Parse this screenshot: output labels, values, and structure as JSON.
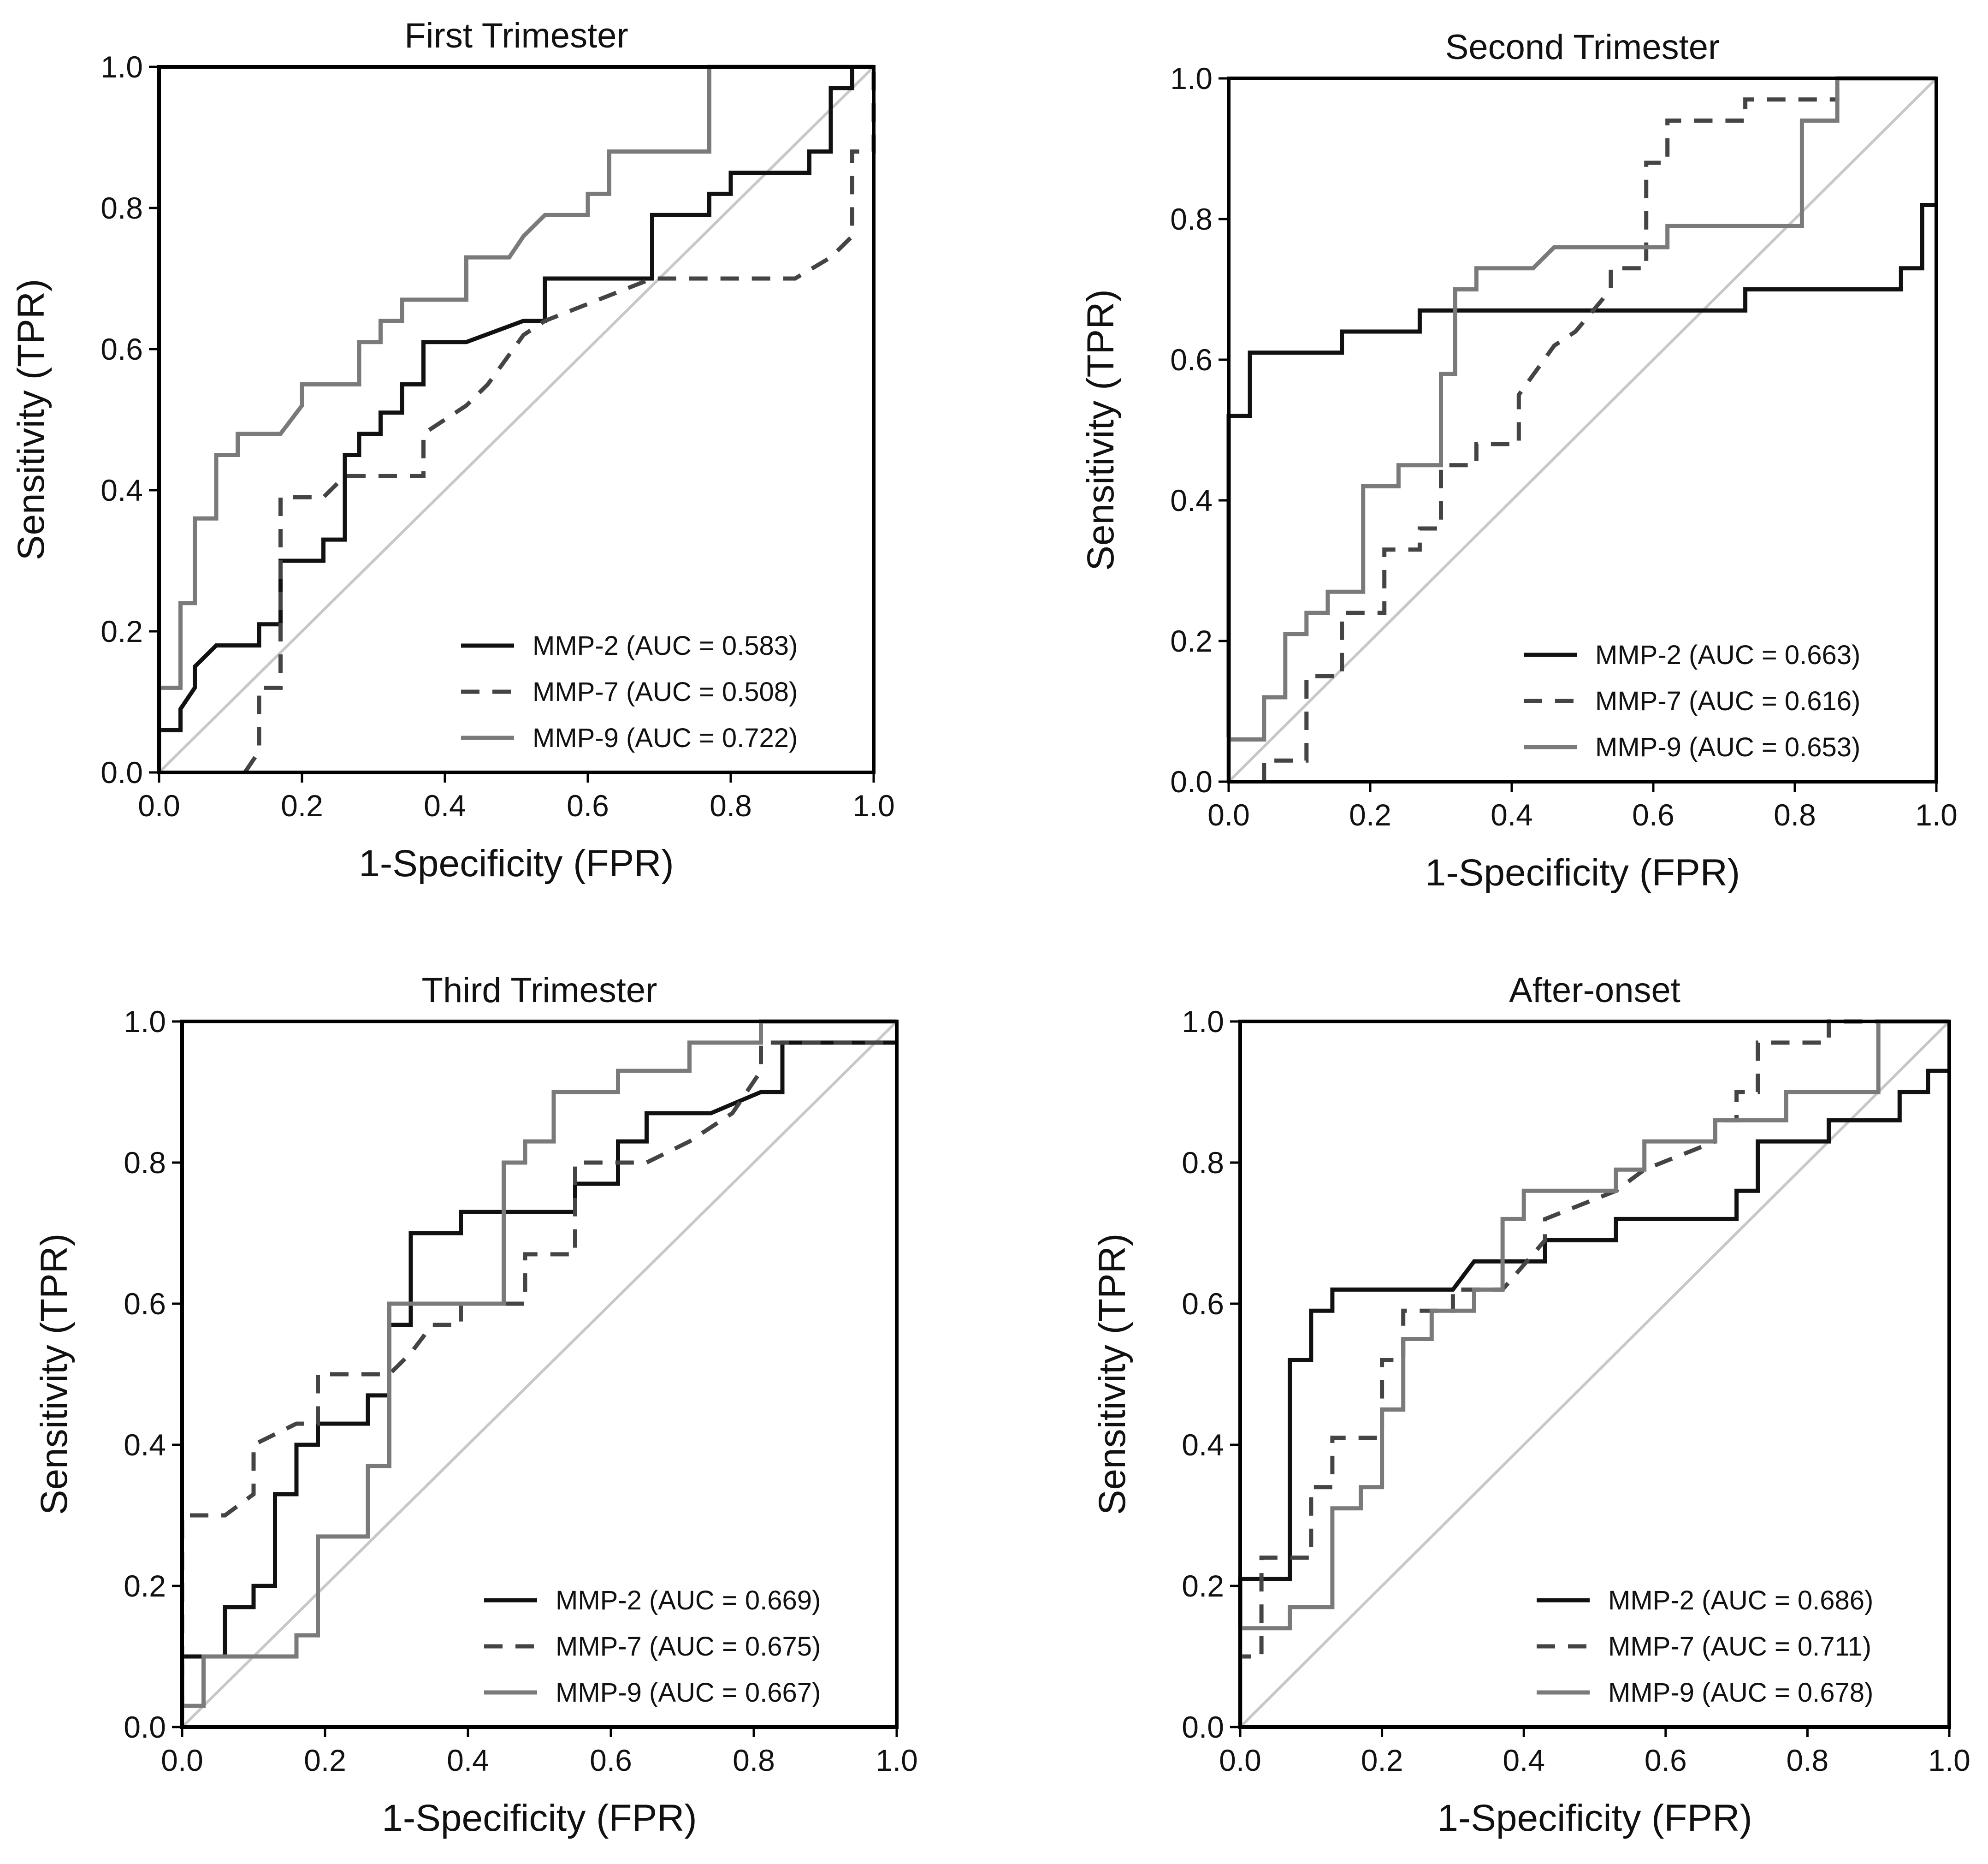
{
  "chart_data": [
    {
      "type": "line",
      "title": "First Trimester",
      "xlabel": "1-Specificity (FPR)",
      "ylabel": "Sensitivity (TPR)",
      "xlim": [
        0,
        1
      ],
      "ylim": [
        0,
        1
      ],
      "xticks": [
        "0.0",
        "0.2",
        "0.4",
        "0.6",
        "0.8",
        "1.0"
      ],
      "yticks": [
        "0.0",
        "0.2",
        "0.4",
        "0.6",
        "0.8",
        "1.0"
      ],
      "reference_line": "y = x",
      "legend_position": "lower-right",
      "series": [
        {
          "name": "MMP-2 (AUC = 0.583)",
          "style": "solid-black",
          "x": [
            0,
            0,
            0.03,
            0.03,
            0.05,
            0.05,
            0.08,
            0.08,
            0.14,
            0.14,
            0.17,
            0.17,
            0.23,
            0.23,
            0.26,
            0.26,
            0.28,
            0.28,
            0.31,
            0.31,
            0.34,
            0.34,
            0.37,
            0.37,
            0.43,
            0.51,
            0.54,
            0.54,
            0.69,
            0.69,
            0.77,
            0.77,
            0.8,
            0.8,
            0.91,
            0.91,
            0.94,
            0.94,
            0.97,
            0.97,
            1.0
          ],
          "y": [
            0,
            0.06,
            0.06,
            0.09,
            0.12,
            0.15,
            0.18,
            0.18,
            0.18,
            0.21,
            0.21,
            0.3,
            0.3,
            0.33,
            0.33,
            0.45,
            0.45,
            0.48,
            0.48,
            0.51,
            0.51,
            0.55,
            0.55,
            0.61,
            0.61,
            0.64,
            0.64,
            0.7,
            0.7,
            0.79,
            0.79,
            0.82,
            0.82,
            0.85,
            0.85,
            0.88,
            0.88,
            0.97,
            0.97,
            1.0,
            1.0
          ]
        },
        {
          "name": "MMP-7 (AUC = 0.508)",
          "style": "dashed-darkgray",
          "x": [
            0.12,
            0.14,
            0.14,
            0.17,
            0.17,
            0.23,
            0.26,
            0.26,
            0.37,
            0.37,
            0.43,
            0.46,
            0.51,
            0.54,
            0.69,
            0.89,
            0.94,
            0.97,
            0.97,
            1.0,
            1.0
          ],
          "y": [
            0,
            0.03,
            0.12,
            0.12,
            0.39,
            0.39,
            0.42,
            0.42,
            0.42,
            0.48,
            0.52,
            0.55,
            0.62,
            0.64,
            0.7,
            0.7,
            0.73,
            0.76,
            0.88,
            0.88,
            1.0
          ]
        },
        {
          "name": "MMP-9 (AUC = 0.722)",
          "style": "solid-gray",
          "x": [
            0,
            0,
            0.03,
            0.03,
            0.05,
            0.05,
            0.08,
            0.08,
            0.11,
            0.11,
            0.17,
            0.2,
            0.2,
            0.28,
            0.28,
            0.31,
            0.31,
            0.34,
            0.34,
            0.43,
            0.43,
            0.49,
            0.51,
            0.54,
            0.6,
            0.6,
            0.63,
            0.63,
            0.77,
            0.77,
            0.97,
            0.97,
            1.0
          ],
          "y": [
            0,
            0.12,
            0.12,
            0.24,
            0.24,
            0.36,
            0.36,
            0.45,
            0.45,
            0.48,
            0.48,
            0.52,
            0.55,
            0.55,
            0.61,
            0.61,
            0.64,
            0.64,
            0.67,
            0.67,
            0.73,
            0.73,
            0.76,
            0.79,
            0.79,
            0.82,
            0.82,
            0.88,
            0.88,
            1.0,
            1.0,
            1.0,
            1.0
          ]
        }
      ]
    },
    {
      "type": "line",
      "title": "Second Trimester",
      "xlabel": "1-Specificity (FPR)",
      "ylabel": "Sensitivity (TPR)",
      "xlim": [
        0,
        1
      ],
      "ylim": [
        0,
        1
      ],
      "xticks": [
        "0.0",
        "0.2",
        "0.4",
        "0.6",
        "0.8",
        "1.0"
      ],
      "yticks": [
        "0.0",
        "0.2",
        "0.4",
        "0.6",
        "0.8",
        "1.0"
      ],
      "reference_line": "y = x",
      "legend_position": "lower-right",
      "series": [
        {
          "name": "MMP-2 (AUC = 0.663)",
          "style": "solid-black",
          "x": [
            0,
            0,
            0.03,
            0.03,
            0.16,
            0.16,
            0.27,
            0.27,
            0.73,
            0.73,
            0.95,
            0.95,
            0.98,
            0.98,
            1.0
          ],
          "y": [
            0,
            0.52,
            0.52,
            0.61,
            0.61,
            0.64,
            0.64,
            0.67,
            0.67,
            0.7,
            0.7,
            0.73,
            0.73,
            0.82,
            0.82
          ]
        },
        {
          "name": "MMP-7 (AUC = 0.616)",
          "style": "dashed-darkgray",
          "x": [
            0.05,
            0.05,
            0.11,
            0.11,
            0.16,
            0.16,
            0.22,
            0.22,
            0.27,
            0.27,
            0.3,
            0.3,
            0.35,
            0.35,
            0.41,
            0.41,
            0.46,
            0.49,
            0.54,
            0.54,
            0.59,
            0.59,
            0.62,
            0.62,
            0.73,
            0.73,
            0.86,
            0.86,
            1.0
          ],
          "y": [
            0,
            0.03,
            0.03,
            0.15,
            0.15,
            0.24,
            0.24,
            0.33,
            0.33,
            0.36,
            0.36,
            0.45,
            0.45,
            0.48,
            0.48,
            0.55,
            0.62,
            0.64,
            0.7,
            0.73,
            0.73,
            0.88,
            0.88,
            0.94,
            0.94,
            0.97,
            0.97,
            1.0,
            1.0
          ]
        },
        {
          "name": "MMP-9 (AUC = 0.653)",
          "style": "solid-gray",
          "x": [
            0,
            0,
            0.05,
            0.05,
            0.08,
            0.08,
            0.11,
            0.11,
            0.14,
            0.14,
            0.19,
            0.19,
            0.24,
            0.24,
            0.3,
            0.3,
            0.32,
            0.32,
            0.35,
            0.35,
            0.43,
            0.46,
            0.59,
            0.62,
            0.62,
            0.81,
            0.81,
            0.86,
            0.86,
            1.0
          ],
          "y": [
            0,
            0.06,
            0.06,
            0.12,
            0.12,
            0.21,
            0.21,
            0.24,
            0.24,
            0.27,
            0.27,
            0.42,
            0.42,
            0.45,
            0.45,
            0.58,
            0.58,
            0.7,
            0.7,
            0.73,
            0.73,
            0.76,
            0.76,
            0.76,
            0.79,
            0.79,
            0.94,
            0.94,
            1.0,
            1.0
          ]
        }
      ]
    },
    {
      "type": "line",
      "title": "Third Trimester",
      "xlabel": "1-Specificity (FPR)",
      "ylabel": "Sensitivity (TPR)",
      "xlim": [
        0,
        1
      ],
      "ylim": [
        0,
        1
      ],
      "xticks": [
        "0.0",
        "0.2",
        "0.4",
        "0.6",
        "0.8",
        "1.0"
      ],
      "yticks": [
        "0.0",
        "0.2",
        "0.4",
        "0.6",
        "0.8",
        "1.0"
      ],
      "reference_line": "y = x",
      "legend_position": "lower-right",
      "series": [
        {
          "name": "MMP-2 (AUC = 0.669)",
          "style": "solid-black",
          "x": [
            0,
            0,
            0.03,
            0.03,
            0.06,
            0.06,
            0.1,
            0.1,
            0.13,
            0.13,
            0.16,
            0.16,
            0.19,
            0.19,
            0.26,
            0.26,
            0.29,
            0.29,
            0.32,
            0.32,
            0.39,
            0.39,
            0.55,
            0.55,
            0.61,
            0.61,
            0.65,
            0.65,
            0.74,
            0.81,
            0.84,
            0.84,
            1.0
          ],
          "y": [
            0,
            0.1,
            0.1,
            0.1,
            0.1,
            0.17,
            0.17,
            0.2,
            0.2,
            0.33,
            0.33,
            0.4,
            0.4,
            0.43,
            0.43,
            0.47,
            0.47,
            0.57,
            0.57,
            0.7,
            0.7,
            0.73,
            0.73,
            0.77,
            0.77,
            0.83,
            0.83,
            0.87,
            0.87,
            0.9,
            0.9,
            0.97,
            0.97
          ]
        },
        {
          "name": "MMP-7 (AUC = 0.675)",
          "style": "dashed-darkgray",
          "x": [
            0,
            0,
            0.06,
            0.1,
            0.1,
            0.16,
            0.19,
            0.19,
            0.29,
            0.29,
            0.32,
            0.35,
            0.39,
            0.39,
            0.48,
            0.48,
            0.55,
            0.55,
            0.65,
            0.71,
            0.77,
            0.81,
            0.81,
            1.0
          ],
          "y": [
            0,
            0.3,
            0.3,
            0.33,
            0.4,
            0.43,
            0.43,
            0.5,
            0.5,
            0.5,
            0.53,
            0.57,
            0.57,
            0.6,
            0.6,
            0.67,
            0.67,
            0.8,
            0.8,
            0.83,
            0.87,
            0.93,
            0.97,
            0.97
          ]
        },
        {
          "name": "MMP-9 (AUC = 0.667)",
          "style": "solid-gray",
          "x": [
            0,
            0,
            0.03,
            0.03,
            0.16,
            0.16,
            0.19,
            0.19,
            0.26,
            0.26,
            0.29,
            0.29,
            0.45,
            0.45,
            0.48,
            0.48,
            0.52,
            0.52,
            0.61,
            0.61,
            0.71,
            0.71,
            0.81,
            0.81,
            1.0
          ],
          "y": [
            0,
            0.03,
            0.03,
            0.1,
            0.1,
            0.13,
            0.13,
            0.27,
            0.27,
            0.37,
            0.37,
            0.6,
            0.6,
            0.8,
            0.8,
            0.83,
            0.83,
            0.9,
            0.9,
            0.93,
            0.93,
            0.97,
            0.97,
            1.0,
            1.0
          ]
        }
      ]
    },
    {
      "type": "line",
      "title": "After-onset",
      "xlabel": "1-Specificity (FPR)",
      "ylabel": "Sensitivity (TPR)",
      "xlim": [
        0,
        1
      ],
      "ylim": [
        0,
        1
      ],
      "xticks": [
        "0.0",
        "0.2",
        "0.4",
        "0.6",
        "0.8",
        "1.0"
      ],
      "yticks": [
        "0.0",
        "0.2",
        "0.4",
        "0.6",
        "0.8",
        "1.0"
      ],
      "reference_line": "y = x",
      "legend_position": "lower-right",
      "series": [
        {
          "name": "MMP-2 (AUC = 0.686)",
          "style": "solid-black",
          "x": [
            0,
            0,
            0.07,
            0.07,
            0.1,
            0.1,
            0.13,
            0.13,
            0.3,
            0.33,
            0.37,
            0.43,
            0.43,
            0.53,
            0.53,
            0.7,
            0.7,
            0.73,
            0.73,
            0.83,
            0.83,
            0.87,
            0.87,
            0.93,
            0.93,
            0.97,
            0.97,
            1.0
          ],
          "y": [
            0,
            0.21,
            0.21,
            0.52,
            0.52,
            0.59,
            0.59,
            0.62,
            0.62,
            0.66,
            0.66,
            0.66,
            0.69,
            0.69,
            0.72,
            0.72,
            0.76,
            0.76,
            0.83,
            0.83,
            0.86,
            0.86,
            0.86,
            0.86,
            0.9,
            0.9,
            0.93,
            0.93
          ]
        },
        {
          "name": "MMP-7 (AUC = 0.711)",
          "style": "dashed-darkgray",
          "x": [
            0,
            0,
            0.03,
            0.03,
            0.07,
            0.07,
            0.1,
            0.1,
            0.13,
            0.13,
            0.2,
            0.2,
            0.23,
            0.23,
            0.3,
            0.3,
            0.37,
            0.43,
            0.43,
            0.53,
            0.57,
            0.67,
            0.67,
            0.7,
            0.7,
            0.73,
            0.73,
            0.83,
            0.83,
            1.0
          ],
          "y": [
            0,
            0.1,
            0.1,
            0.24,
            0.24,
            0.24,
            0.24,
            0.34,
            0.34,
            0.41,
            0.41,
            0.52,
            0.52,
            0.59,
            0.59,
            0.62,
            0.62,
            0.69,
            0.72,
            0.76,
            0.79,
            0.83,
            0.86,
            0.86,
            0.9,
            0.9,
            0.97,
            0.97,
            1.0,
            1.0
          ]
        },
        {
          "name": "MMP-9 (AUC = 0.678)",
          "style": "solid-gray",
          "x": [
            0,
            0,
            0.07,
            0.07,
            0.13,
            0.13,
            0.17,
            0.17,
            0.2,
            0.2,
            0.23,
            0.23,
            0.27,
            0.27,
            0.33,
            0.33,
            0.37,
            0.37,
            0.4,
            0.4,
            0.53,
            0.53,
            0.57,
            0.57,
            0.67,
            0.67,
            0.77,
            0.77,
            0.9,
            0.9,
            1.0
          ],
          "y": [
            0,
            0.14,
            0.14,
            0.17,
            0.17,
            0.31,
            0.31,
            0.34,
            0.34,
            0.45,
            0.45,
            0.55,
            0.55,
            0.59,
            0.59,
            0.62,
            0.62,
            0.72,
            0.72,
            0.76,
            0.76,
            0.79,
            0.79,
            0.83,
            0.83,
            0.86,
            0.86,
            0.9,
            0.9,
            1.0,
            1.0
          ]
        }
      ]
    }
  ],
  "colors": {
    "mmp2": "#111111",
    "mmp7": "#444444",
    "mmp9": "#7a7a7a",
    "reference": "#c8c8c8"
  }
}
